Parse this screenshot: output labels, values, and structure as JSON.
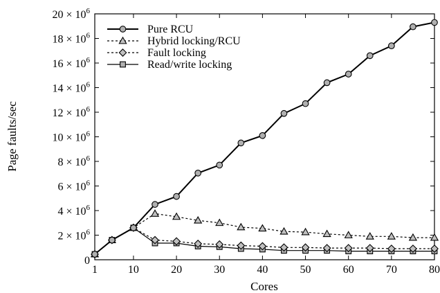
{
  "chart_data": {
    "type": "line",
    "xlabel": "Cores",
    "ylabel": "Page faults/sec",
    "xlim": [
      1,
      80
    ],
    "ylim": [
      0,
      20000000
    ],
    "x_ticks": [
      1,
      10,
      20,
      30,
      40,
      50,
      60,
      70,
      80
    ],
    "x_tick_labels": [
      "1",
      "10",
      "20",
      "30",
      "40",
      "50",
      "60",
      "70",
      "80"
    ],
    "y_ticks": [
      0,
      2000000,
      4000000,
      6000000,
      8000000,
      10000000,
      12000000,
      14000000,
      16000000,
      18000000,
      20000000
    ],
    "y_tick_labels": [
      {
        "mantissa": "0",
        "exp": ""
      },
      {
        "mantissa": "2 × 10",
        "exp": "6"
      },
      {
        "mantissa": "4 × 10",
        "exp": "6"
      },
      {
        "mantissa": "6 × 10",
        "exp": "6"
      },
      {
        "mantissa": "8 × 10",
        "exp": "6"
      },
      {
        "mantissa": "10 × 10",
        "exp": "6"
      },
      {
        "mantissa": "12 × 10",
        "exp": "6"
      },
      {
        "mantissa": "14 × 10",
        "exp": "6"
      },
      {
        "mantissa": "16 × 10",
        "exp": "6"
      },
      {
        "mantissa": "18 × 10",
        "exp": "6"
      },
      {
        "mantissa": "20 × 10",
        "exp": "6"
      }
    ],
    "grid": false,
    "legend_position": "top-left",
    "x": [
      1,
      5,
      10,
      15,
      20,
      25,
      30,
      35,
      40,
      45,
      50,
      55,
      60,
      65,
      70,
      75,
      80
    ],
    "series": [
      {
        "name": "Pure RCU",
        "marker": "circle",
        "dash": "solid",
        "line_color": "#000000",
        "marker_fill": "#b0b0b0",
        "values": [
          450000,
          1600000,
          2600000,
          4500000,
          5150000,
          7050000,
          7700000,
          9500000,
          10100000,
          11900000,
          12700000,
          14400000,
          15100000,
          16600000,
          17400000,
          18950000,
          19300000
        ]
      },
      {
        "name": "Hybrid locking/RCU",
        "marker": "triangle",
        "dash": "dotted",
        "line_color": "#000000",
        "marker_fill": "#c0c0c0",
        "values": [
          450000,
          1600000,
          2600000,
          3750000,
          3500000,
          3200000,
          3000000,
          2650000,
          2550000,
          2300000,
          2250000,
          2100000,
          2000000,
          1900000,
          1900000,
          1800000,
          1800000
        ]
      },
      {
        "name": "Fault locking",
        "marker": "diamond",
        "dash": "dotted",
        "line_color": "#000000",
        "marker_fill": "#c0c0c0",
        "values": [
          450000,
          1600000,
          2600000,
          1600000,
          1500000,
          1300000,
          1250000,
          1150000,
          1100000,
          1000000,
          1000000,
          950000,
          950000,
          950000,
          900000,
          900000,
          900000
        ]
      },
      {
        "name": "Read/write locking",
        "marker": "square",
        "dash": "solid",
        "line_color": "#000000",
        "marker_fill": "#b0b0b0",
        "values": [
          450000,
          1600000,
          2600000,
          1350000,
          1350000,
          1100000,
          1050000,
          900000,
          850000,
          750000,
          750000,
          750000,
          700000,
          700000,
          700000,
          700000,
          700000
        ]
      }
    ]
  }
}
